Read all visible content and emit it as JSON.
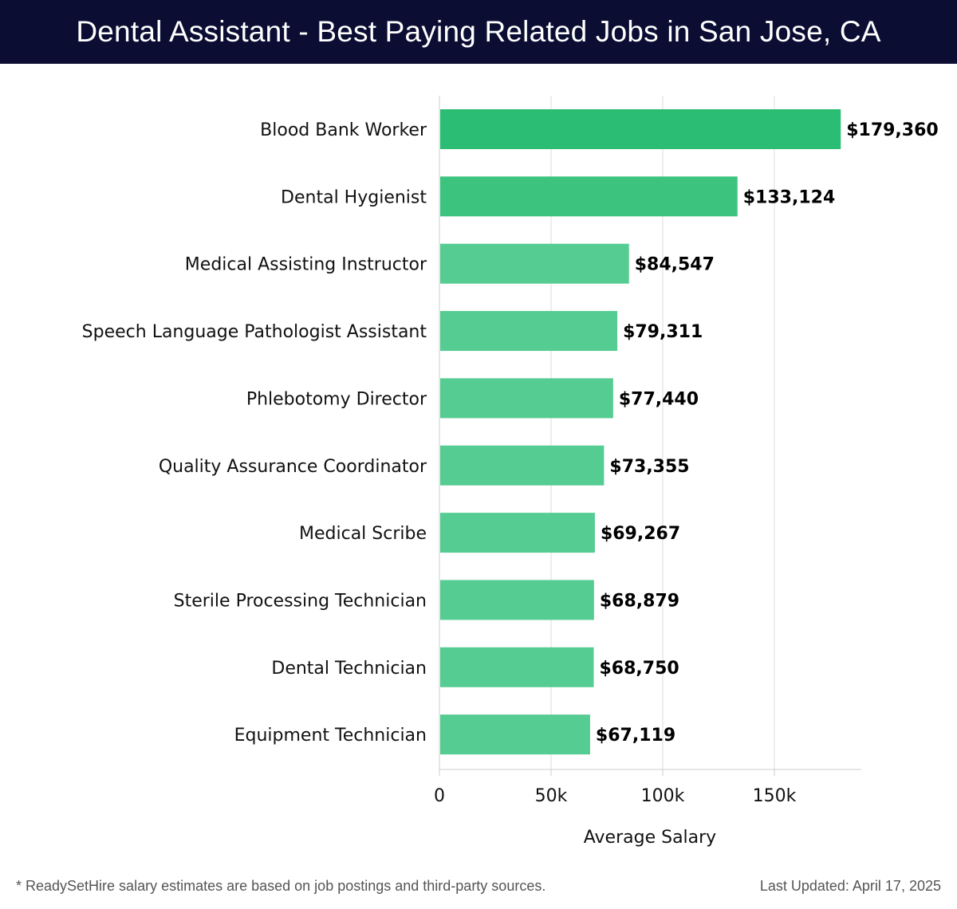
{
  "header": {
    "title": "Dental Assistant - Best Paying Related Jobs in San Jose, CA"
  },
  "chart_data": {
    "type": "bar",
    "orientation": "horizontal",
    "title": "Dental Assistant - Best Paying Related Jobs in San Jose, CA",
    "xlabel": "Average Salary",
    "ylabel": "",
    "xlim": [
      0,
      188000
    ],
    "xticks": [
      0,
      50000,
      100000,
      150000
    ],
    "xtick_labels": [
      "0",
      "50k",
      "100k",
      "150k"
    ],
    "grid": true,
    "categories": [
      "Blood Bank Worker",
      "Dental Hygienist",
      "Medical Assisting Instructor",
      "Speech Language Pathologist Assistant",
      "Phlebotomy Director",
      "Quality Assurance Coordinator",
      "Medical Scribe",
      "Sterile Processing Technician",
      "Dental Technician",
      "Equipment Technician"
    ],
    "values": [
      179360,
      133124,
      84547,
      79311,
      77440,
      73355,
      69267,
      68879,
      68750,
      67119
    ],
    "value_labels": [
      "$179,360",
      "$133,124",
      "$84,547",
      "$79,311",
      "$77,440",
      "$73,355",
      "$69,267",
      "$68,879",
      "$68,750",
      "$67,119"
    ],
    "colors": {
      "top_bar": "#2bbd74",
      "second_bar": "#3cc47f",
      "other_bars": "#55cc91",
      "gridline": "#dddddd",
      "axis": "#cccccc"
    }
  },
  "footer": {
    "note": "* ReadySetHire salary estimates are based on job postings and third-party sources.",
    "updated": "Last Updated: April 17, 2025"
  }
}
